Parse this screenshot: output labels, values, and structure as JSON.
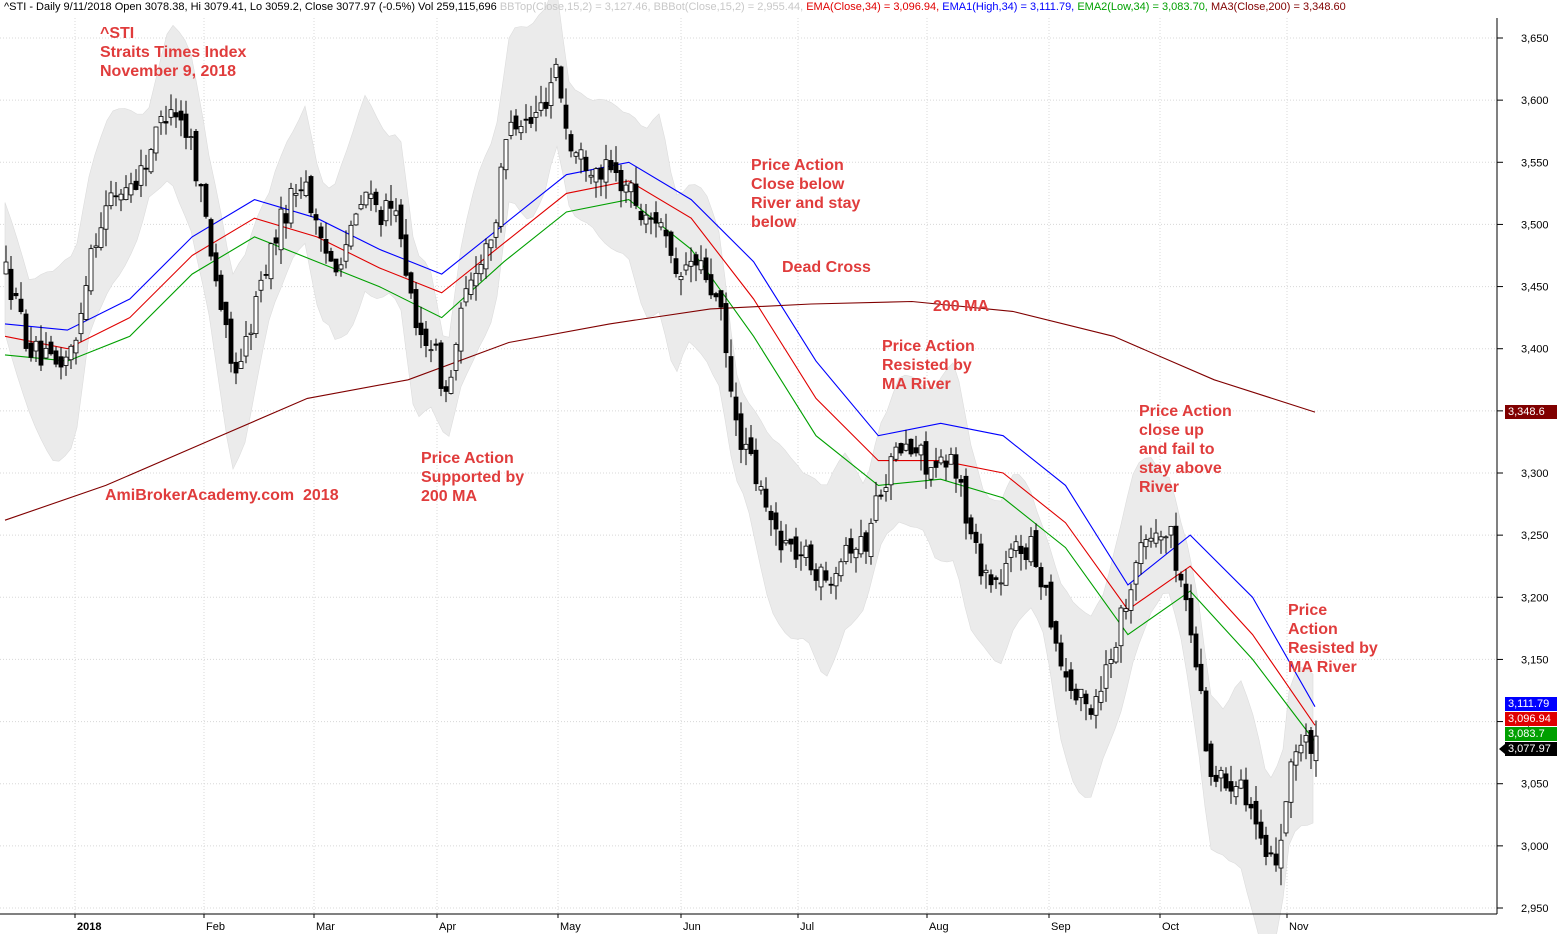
{
  "header": {
    "symbol_info": "^STI - Daily 9/11/2018 Open 3078.38, Hi 3079.41, Lo 3059.2, Close 3077.97 (-0.5%) Vol 259,115,696",
    "bbtop": "BBTop(Close,15,2) = 3,127.46,",
    "bbbot": "BBBot(Close,15,2) = 2,955.44,",
    "ema": "EMA(Close,34) = 3,096.94,",
    "ema1": "EMA1(High,34) = 3,111.79,",
    "ema2": "EMA2(Low,34) = 3,083.70,",
    "ma3": "MA3(Close,200) = 3,348.60"
  },
  "title": {
    "line1": "^STI",
    "line2": "Straits Times Index",
    "line3": "November 9, 2018"
  },
  "watermark": "AmiBrokerAcademy.com  2018",
  "annotations": {
    "a1": "Price Action\nSupported by\n200 MA",
    "a2": "Price Action\nClose below\nRiver and stay\nbelow",
    "a3": "Dead Cross",
    "a4": "200 MA",
    "a5": "Price Action\nResisted by\nMA River",
    "a6": "Price Action\nclose up\nand fail to\nstay above\nRiver",
    "a7": "Price\nAction\nResisted by\nMA River"
  },
  "tags": {
    "ma3": "3,348.6",
    "ema1": "3,111.79",
    "ema": "3,096.94",
    "ema2": "3,083.7",
    "close": "3,077.97"
  },
  "colors": {
    "ema1": "#0000ff",
    "ema": "#e00000",
    "ema2": "#00a000",
    "ma3": "#800000",
    "band": "#ebebeb",
    "annotation": "#e03c3c",
    "header_bb": "#c8c8c8",
    "header_ema2": "#00a000"
  },
  "chart_data": {
    "type": "candlestick",
    "y_axis_ticks": [
      "3,650",
      "3,600",
      "3,550",
      "3,500",
      "3,450",
      "3,400",
      "3,350",
      "3,300",
      "3,250",
      "3,200",
      "3,150",
      "3,100",
      "3,050",
      "3,000",
      "2,950"
    ],
    "ylim": [
      2945,
      3660
    ],
    "x_axis_labels": [
      "2018",
      "Feb",
      "Mar",
      "Apr",
      "May",
      "Jun",
      "Jul",
      "Aug",
      "Sep",
      "Oct",
      "Nov"
    ],
    "series": [
      {
        "name": "EMA1(High,34)",
        "values": [
          3420,
          3415,
          3440,
          3490,
          3520,
          3505,
          3480,
          3460,
          3500,
          3540,
          3550,
          3520,
          3470,
          3390,
          3330,
          3340,
          3330,
          3290,
          3210,
          3250,
          3200,
          3112
        ]
      },
      {
        "name": "EMA(Close,34)",
        "values": [
          3410,
          3400,
          3425,
          3475,
          3505,
          3490,
          3465,
          3445,
          3485,
          3525,
          3535,
          3505,
          3440,
          3360,
          3310,
          3310,
          3300,
          3260,
          3190,
          3225,
          3170,
          3097
        ]
      },
      {
        "name": "EMA2(Low,34)",
        "values": [
          3395,
          3390,
          3410,
          3460,
          3490,
          3470,
          3450,
          3425,
          3470,
          3510,
          3520,
          3480,
          3410,
          3330,
          3290,
          3295,
          3280,
          3240,
          3170,
          3205,
          3150,
          3084
        ]
      },
      {
        "name": "MA3(Close,200)",
        "values": [
          3262,
          3290,
          3325,
          3360,
          3375,
          3405,
          3420,
          3432,
          3436,
          3438,
          3430,
          3410,
          3375,
          3349
        ]
      }
    ],
    "last_close": 3077.97
  }
}
